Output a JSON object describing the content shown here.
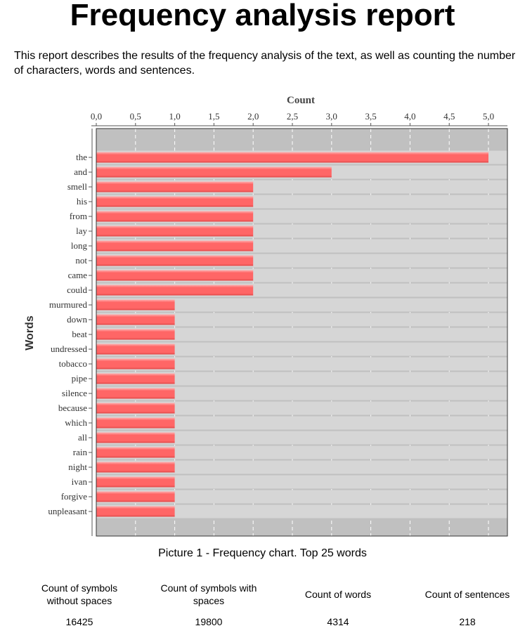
{
  "report": {
    "title": "Frequency analysis report",
    "intro": "This report describes the results of the frequency analysis of the text, as well as counting the number of characters, words and sentences.",
    "caption": "Picture 1 - Frequency chart. Top 25 words"
  },
  "stats": [
    {
      "label": "Count of symbols without spaces",
      "value": "16425"
    },
    {
      "label": "Count of symbols with spaces",
      "value": "19800"
    },
    {
      "label": "Count of words",
      "value": "4314"
    },
    {
      "label": "Count of sentences",
      "value": "218"
    }
  ],
  "colors": {
    "bar": "#ff6666",
    "plot_bg": "#c0c0c0",
    "grid": "#ffffff"
  },
  "chart_data": {
    "type": "bar",
    "orientation": "horizontal",
    "title": "",
    "xlabel": "Count",
    "ylabel": "Words",
    "xlim": [
      0,
      5.2
    ],
    "x_ticks": [
      "0,0",
      "0,5",
      "1,0",
      "1,5",
      "2,0",
      "2,5",
      "3,0",
      "3,5",
      "4,0",
      "4,5",
      "5,0"
    ],
    "grid": true,
    "categories": [
      "the",
      "and",
      "smell",
      "his",
      "from",
      "lay",
      "long",
      "not",
      "came",
      "could",
      "murmured",
      "down",
      "beat",
      "undressed",
      "tobacco",
      "pipe",
      "silence",
      "because",
      "which",
      "all",
      "rain",
      "night",
      "ivan",
      "forgive",
      "unpleasant"
    ],
    "values": [
      5,
      3,
      2,
      2,
      2,
      2,
      2,
      2,
      2,
      2,
      1,
      1,
      1,
      1,
      1,
      1,
      1,
      1,
      1,
      1,
      1,
      1,
      1,
      1,
      1
    ]
  }
}
